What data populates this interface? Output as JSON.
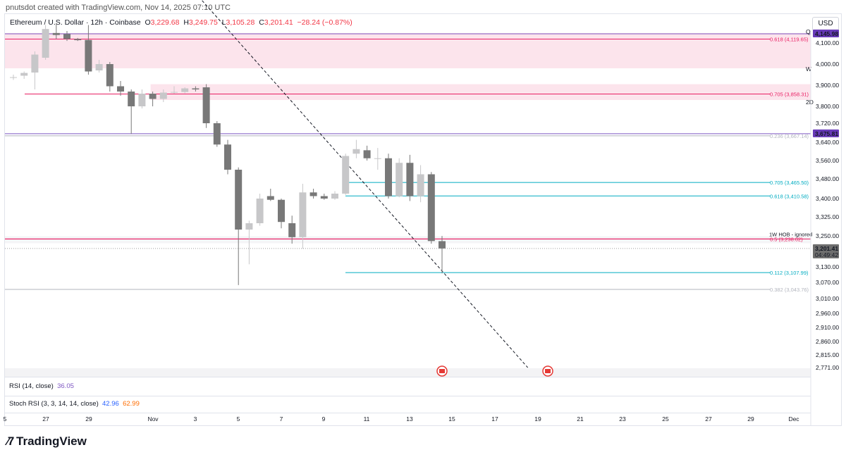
{
  "header": {
    "credit": "pnutsdot created with TradingView.com, Nov 14, 2025 07:10 UTC"
  },
  "legend": {
    "symbol": "Ethereum / U.S. Dollar · 12h · Coinbase",
    "open_label": "O",
    "open": "3,229.68",
    "high_label": "H",
    "high": "3,249.75",
    "low_label": "L",
    "low": "3,105.28",
    "close_label": "C",
    "close": "3,201.41",
    "change": "−28.24 (−0.87%)"
  },
  "currency": "USD",
  "price_axis": {
    "ticks": [
      "4,100.00",
      "4,000.00",
      "3,900.00",
      "3,800.00",
      "3,720.00",
      "3,640.00",
      "3,560.00",
      "3,480.00",
      "3,400.00",
      "3,325.00",
      "3,250.00",
      "3,130.00",
      "3,070.00",
      "3,010.00",
      "2,960.00",
      "2,910.00",
      "2,860.00",
      "2,815.00",
      "2,771.00"
    ],
    "badges": [
      {
        "text": "4,145.98",
        "color": "#673ab7"
      },
      {
        "text": "3,675.81",
        "color": "#673ab7"
      },
      {
        "text": "3,201.41",
        "sub": "04:49:42",
        "color": "#6e6e6e"
      }
    ],
    "tf_markers": [
      "Q",
      "W",
      "2D"
    ]
  },
  "annotations": {
    "fib_labels": [
      {
        "text": "0.618 (4,119.65)",
        "color": "#e91e63",
        "price": 4119.65
      },
      {
        "text": "0.705 (3,858.31)",
        "color": "#e91e63",
        "price": 3858.31
      },
      {
        "text": "0.236 (3,667.14)",
        "color": "#b2b5be",
        "price": 3667.14
      },
      {
        "text": "0.705 (3,465.50)",
        "color": "#00acc1",
        "price": 3465.5
      },
      {
        "text": "0.618 (3,410.58)",
        "color": "#00acc1",
        "price": 3410.58
      },
      {
        "text": "0.5 (3,238.02)",
        "color": "#e91e63",
        "price": 3238.02
      },
      {
        "text": "0.112 (3,107.99)",
        "color": "#00acc1",
        "price": 3107.99
      },
      {
        "text": "0.382 (3,043.76)",
        "color": "#b2b5be",
        "price": 3043.76
      }
    ],
    "hob_label": "1W HOB - ignored"
  },
  "indicators": {
    "rsi": {
      "label": "RSI (14, close)",
      "value": "36.05",
      "color": "#7e57c2"
    },
    "stoch": {
      "label": "Stoch RSI (3, 3, 14, 14, close)",
      "k": "42.96",
      "d": "62.99",
      "k_color": "#2962ff",
      "d_color": "#ff6d00"
    }
  },
  "time_axis": [
    "5",
    "27",
    "29",
    "Nov",
    "3",
    "5",
    "7",
    "9",
    "11",
    "13",
    "15",
    "17",
    "19",
    "21",
    "23",
    "25",
    "27",
    "29",
    "Dec"
  ],
  "branding": {
    "logo_text": "TradingView"
  },
  "chart_data": {
    "type": "candlestick",
    "title": "Ethereum / U.S. Dollar · 12h · Coinbase",
    "ylabel": "USD",
    "ylim": [
      2771,
      4180
    ],
    "candles": [
      {
        "o": 3935,
        "h": 3950,
        "l": 3925,
        "c": 3938
      },
      {
        "o": 3945,
        "h": 3965,
        "l": 3930,
        "c": 3958
      },
      {
        "o": 3960,
        "h": 4060,
        "l": 3880,
        "c": 4045
      },
      {
        "o": 4030,
        "h": 4190,
        "l": 4020,
        "c": 4170
      },
      {
        "o": 4150,
        "h": 4200,
        "l": 4120,
        "c": 4140
      },
      {
        "o": 4145,
        "h": 4160,
        "l": 4110,
        "c": 4120
      },
      {
        "o": 4120,
        "h": 4125,
        "l": 4110,
        "c": 4114
      },
      {
        "o": 4115,
        "h": 4190,
        "l": 3950,
        "c": 3965
      },
      {
        "o": 3970,
        "h": 4020,
        "l": 3960,
        "c": 4000
      },
      {
        "o": 4000,
        "h": 4010,
        "l": 3870,
        "c": 3895
      },
      {
        "o": 3895,
        "h": 3920,
        "l": 3850,
        "c": 3870
      },
      {
        "o": 3870,
        "h": 3880,
        "l": 3675,
        "c": 3800
      },
      {
        "o": 3800,
        "h": 3880,
        "l": 3790,
        "c": 3860
      },
      {
        "o": 3860,
        "h": 3870,
        "l": 3800,
        "c": 3835
      },
      {
        "o": 3835,
        "h": 3880,
        "l": 3820,
        "c": 3865
      },
      {
        "o": 3865,
        "h": 3895,
        "l": 3860,
        "c": 3868
      },
      {
        "o": 3868,
        "h": 3890,
        "l": 3862,
        "c": 3885
      },
      {
        "o": 3885,
        "h": 3895,
        "l": 3870,
        "c": 3880
      },
      {
        "o": 3890,
        "h": 3905,
        "l": 3700,
        "c": 3720
      },
      {
        "o": 3720,
        "h": 3730,
        "l": 3620,
        "c": 3630
      },
      {
        "o": 3630,
        "h": 3650,
        "l": 3500,
        "c": 3520
      },
      {
        "o": 3520,
        "h": 3530,
        "l": 3060,
        "c": 3275
      },
      {
        "o": 3275,
        "h": 3310,
        "l": 3140,
        "c": 3300
      },
      {
        "o": 3300,
        "h": 3420,
        "l": 3290,
        "c": 3400
      },
      {
        "o": 3410,
        "h": 3440,
        "l": 3390,
        "c": 3395
      },
      {
        "o": 3395,
        "h": 3400,
        "l": 3280,
        "c": 3305
      },
      {
        "o": 3300,
        "h": 3330,
        "l": 3220,
        "c": 3245
      },
      {
        "o": 3245,
        "h": 3460,
        "l": 3200,
        "c": 3425
      },
      {
        "o": 3425,
        "h": 3440,
        "l": 3400,
        "c": 3410
      },
      {
        "o": 3410,
        "h": 3420,
        "l": 3395,
        "c": 3400
      },
      {
        "o": 3400,
        "h": 3430,
        "l": 3395,
        "c": 3420
      },
      {
        "o": 3420,
        "h": 3590,
        "l": 3415,
        "c": 3580
      },
      {
        "o": 3590,
        "h": 3650,
        "l": 3570,
        "c": 3610
      },
      {
        "o": 3605,
        "h": 3625,
        "l": 3560,
        "c": 3570
      },
      {
        "o": 3570,
        "h": 3615,
        "l": 3520,
        "c": 3570
      },
      {
        "o": 3570,
        "h": 3590,
        "l": 3400,
        "c": 3410
      },
      {
        "o": 3410,
        "h": 3570,
        "l": 3405,
        "c": 3550
      },
      {
        "o": 3550,
        "h": 3585,
        "l": 3390,
        "c": 3410
      },
      {
        "o": 3410,
        "h": 3540,
        "l": 3385,
        "c": 3500
      },
      {
        "o": 3500,
        "h": 3510,
        "l": 3220,
        "c": 3230
      },
      {
        "o": 3229.68,
        "h": 3249.75,
        "l": 3105.28,
        "c": 3201.41
      }
    ],
    "candle_x_index": [
      0,
      1,
      2,
      3,
      4,
      5,
      6,
      7,
      8,
      9,
      10,
      11,
      12,
      13,
      14,
      15,
      16,
      17,
      18,
      19,
      20,
      21,
      22,
      23,
      24,
      25,
      26,
      27,
      28,
      29,
      30,
      31,
      32,
      33,
      34,
      35,
      36,
      37,
      38,
      39,
      40
    ],
    "zones": [
      {
        "from": 3980,
        "to": 4150,
        "start_candle": 0
      },
      {
        "from": 3830,
        "to": 3905,
        "start_candle": 13
      }
    ],
    "horizontal_lines": [
      4145.98,
      3675.81,
      3238.02
    ],
    "trendline": {
      "from": {
        "candle": 17,
        "price": 4350
      },
      "to": {
        "candle": 48,
        "price": 2771
      }
    }
  }
}
